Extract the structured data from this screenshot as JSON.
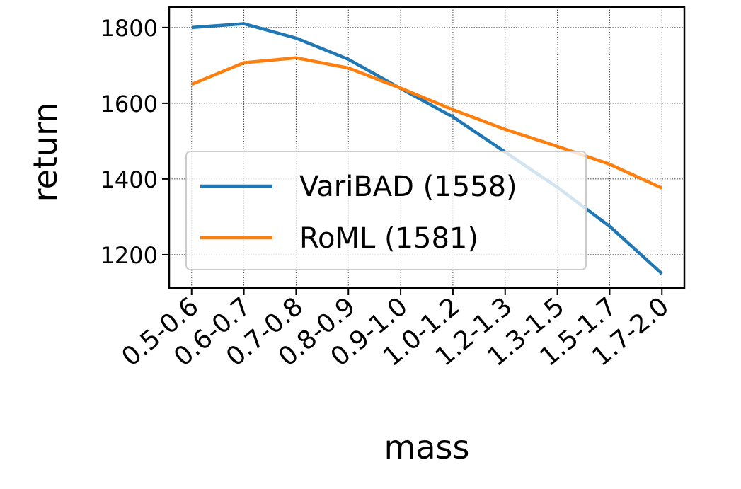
{
  "chart_data": {
    "type": "line",
    "xlabel": "mass",
    "ylabel": "return",
    "categories": [
      "0.5-0.6",
      "0.6-0.7",
      "0.7-0.8",
      "0.8-0.9",
      "0.9-1.0",
      "1.0-1.2",
      "1.2-1.3",
      "1.3-1.5",
      "1.5-1.7",
      "1.7-2.0"
    ],
    "series": [
      {
        "name": "VariBAD (1558)",
        "color": "#1f77b4",
        "values": [
          1800,
          1810,
          1772,
          1716,
          1639,
          1564,
          1471,
          1378,
          1275,
          1150
        ]
      },
      {
        "name": "RoML (1581)",
        "color": "#ff7f0e",
        "values": [
          1650,
          1707,
          1720,
          1693,
          1640,
          1583,
          1531,
          1486,
          1439,
          1376
        ]
      }
    ],
    "ylim": [
      1112,
      1854
    ],
    "yticks": [
      1200,
      1400,
      1600,
      1800
    ],
    "grid": true,
    "legend": "lower left"
  }
}
